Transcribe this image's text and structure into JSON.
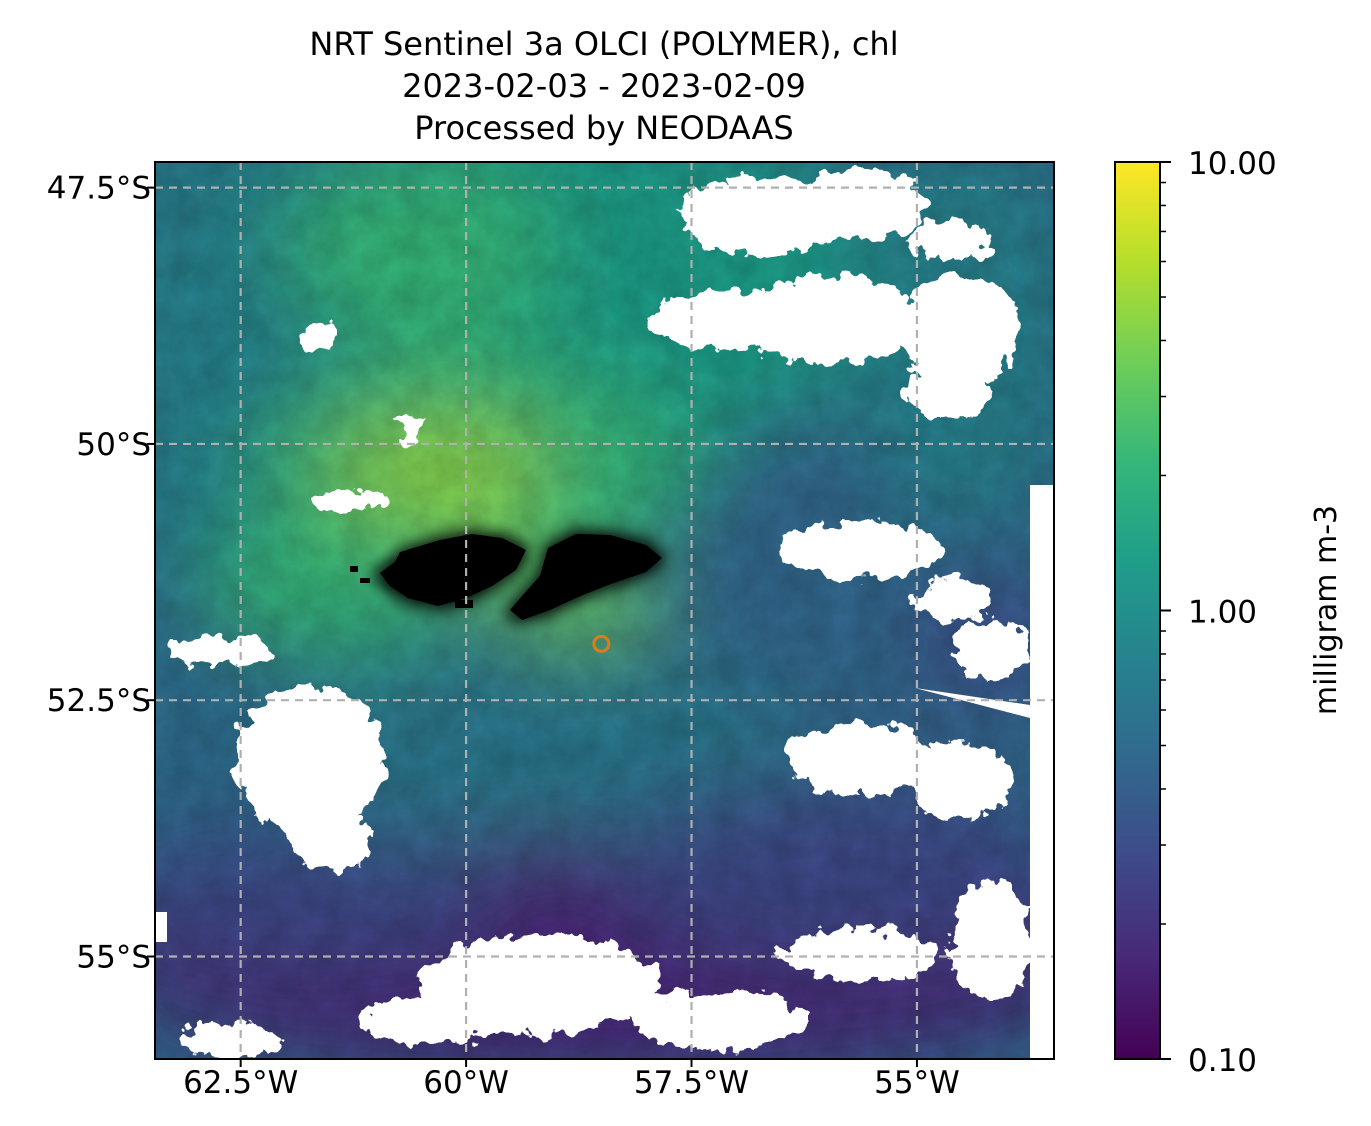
{
  "title_lines": [
    "NRT Sentinel 3a OLCI (POLYMER), chl",
    "2023-02-03 - 2023-02-09",
    "Processed by NEODAAS"
  ],
  "map": {
    "lon_range": [
      -63.45,
      -53.48
    ],
    "lat_range": [
      -56.0,
      -47.25
    ],
    "lat_ticks": [
      {
        "value": -47.5,
        "label": "47.5°S"
      },
      {
        "value": -50.0,
        "label": "50°S"
      },
      {
        "value": -52.5,
        "label": "52.5°S"
      },
      {
        "value": -55.0,
        "label": "55°S"
      }
    ],
    "lon_ticks": [
      {
        "value": -62.5,
        "label": "62.5°W"
      },
      {
        "value": -60.0,
        "label": "60°W"
      },
      {
        "value": -57.5,
        "label": "57.5°W"
      },
      {
        "value": -55.0,
        "label": "55°W"
      }
    ],
    "gridlines": true,
    "gridline_color": "#b0b0b0",
    "land_color": "#000000",
    "cloud_color": "#ffffff",
    "marker": {
      "lon": -58.5,
      "lat": -51.95,
      "color": "#e07b1a"
    },
    "landmasses": [
      "Falkland Islands"
    ]
  },
  "colorbar": {
    "label": "milligram m-3",
    "scale": "log",
    "min": 0.1,
    "max": 10.0,
    "ticks": [
      {
        "value": 10.0,
        "label": "10.00"
      },
      {
        "value": 1.0,
        "label": "1.00"
      },
      {
        "value": 0.1,
        "label": "0.10"
      }
    ],
    "colormap": "viridis",
    "colors": [
      "#440154",
      "#482878",
      "#3e4a89",
      "#31688e",
      "#26828e",
      "#1f9e89",
      "#35b779",
      "#6ece58",
      "#b5de2b",
      "#fde725"
    ]
  }
}
